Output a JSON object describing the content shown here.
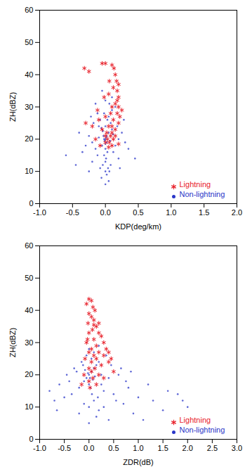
{
  "chart_data": [
    {
      "type": "scatter",
      "xlabel": "KDP(deg/km)",
      "ylabel": "ZH(dBZ)",
      "xlim": [
        -1.0,
        2.0
      ],
      "xticks": [
        {
          "value": -1.0,
          "label": "-1.0"
        },
        {
          "value": -0.5,
          "label": "-0.5"
        },
        {
          "value": 0.0,
          "label": "0.0"
        },
        {
          "value": 0.5,
          "label": "0.5"
        },
        {
          "value": 1.0,
          "label": "1.0"
        },
        {
          "value": 1.5,
          "label": "1.5"
        },
        {
          "value": 2.0,
          "label": "2.0"
        }
      ],
      "ylim": [
        0,
        60
      ],
      "yticks": [
        0,
        10,
        20,
        30,
        40,
        50,
        60
      ],
      "legend": "bottom-right",
      "series": [
        {
          "name": "Lightning",
          "color": "#e8202a",
          "marker": "asterisk",
          "x": [
            -0.32,
            -0.25,
            -0.05,
            0.0,
            0.1,
            0.13,
            0.15,
            0.17,
            0.2,
            0.12,
            0.18,
            0.2,
            0.05,
            -0.02,
            0.15,
            0.2,
            0.1,
            0.08,
            0.18,
            0.22,
            0.0,
            -0.1,
            0.12,
            0.2,
            0.05,
            0.15,
            -0.05,
            0.1,
            0.0,
            0.08,
            -0.15,
            0.03,
            0.12,
            0.0,
            0.06,
            -0.08,
            0.1,
            0.02,
            0.15,
            -0.2,
            0.18,
            0.06,
            -0.12,
            0.25,
            0.1,
            -0.3,
            0.2,
            0.05
          ],
          "y": [
            42,
            41,
            43.5,
            43.5,
            43,
            42,
            40,
            38,
            37,
            36,
            35,
            33,
            34,
            33,
            31,
            30,
            30,
            28,
            28,
            27,
            27,
            26,
            26,
            25,
            24,
            23,
            23,
            22,
            21,
            21,
            20,
            20,
            20,
            19,
            19,
            18,
            18,
            22,
            21,
            24,
            32,
            38,
            29,
            29,
            24,
            25,
            18.5,
            17.5
          ]
        },
        {
          "name": "Non-lightning",
          "color": "#2a36c8",
          "marker": "circle",
          "x": [
            0,
            0.02,
            -0.03,
            0.05,
            -0.05,
            0.0,
            0.03,
            -0.02,
            0.01,
            0.0,
            -0.04,
            0.04,
            0.0,
            0.02,
            -0.06,
            0.1,
            -0.1,
            0.08,
            -0.08,
            0.05,
            -0.12,
            0.1,
            0.15,
            -0.15,
            0.0,
            0.2,
            -0.2,
            0.15,
            -0.15,
            0.12,
            -0.12,
            0.2,
            -0.2,
            0.25,
            -0.25,
            0.3,
            -0.3,
            0.08,
            -0.08,
            0.06,
            -0.1,
            0.07,
            -0.04,
            0.12,
            -0.06,
            0.18,
            -0.18,
            0.0,
            0.03,
            -0.02,
            0.06,
            -0.35,
            0.35,
            -0.4,
            0.28,
            0.0,
            0.05,
            -0.22,
            0.22,
            -0.25,
            -0.6,
            0.45,
            -0.45,
            0.1,
            -0.05,
            0.0,
            0.01,
            -0.01,
            0.02,
            -0.02
          ],
          "y": [
            20,
            19,
            21,
            22,
            18,
            17,
            16,
            15,
            14,
            13,
            12,
            11,
            10,
            9,
            8,
            23,
            24,
            25,
            26,
            27,
            28,
            29,
            30,
            31,
            32,
            20,
            19,
            18,
            17,
            16,
            15,
            14,
            13,
            22,
            21,
            19,
            18,
            12,
            11,
            10,
            20.5,
            19.5,
            22.5,
            21.5,
            23.5,
            24,
            25,
            24,
            26,
            28,
            31,
            16,
            17,
            22,
            26,
            6,
            7,
            27,
            11,
            10,
            15,
            14,
            12,
            33,
            35,
            18.5,
            20.5,
            19.5,
            21,
            20
          ]
        }
      ]
    },
    {
      "type": "scatter",
      "xlabel": "ZDR(dB)",
      "ylabel": "ZH(dBZ)",
      "xlim": [
        -1.0,
        3.0
      ],
      "xticks": [
        {
          "value": -1.0,
          "label": "-1.0"
        },
        {
          "value": -0.5,
          "label": "-0.5"
        },
        {
          "value": 0.0,
          "label": "0.0"
        },
        {
          "value": 0.5,
          "label": "0.5"
        },
        {
          "value": 1.0,
          "label": "1.0"
        },
        {
          "value": 1.5,
          "label": "1.5"
        },
        {
          "value": 2.0,
          "label": "2.0"
        },
        {
          "value": 2.5,
          "label": "2.5"
        },
        {
          "value": 3.0,
          "label": "3.0"
        }
      ],
      "ylim": [
        0,
        60
      ],
      "yticks": [
        0,
        10,
        20,
        30,
        40,
        50,
        60
      ],
      "legend": "bottom-right",
      "series": [
        {
          "name": "Lightning",
          "color": "#e8202a",
          "marker": "asterisk",
          "x": [
            0.0,
            0.05,
            -0.05,
            0.08,
            0.12,
            0.0,
            0.05,
            0.1,
            -0.02,
            0.15,
            0.07,
            0.2,
            0.0,
            0.25,
            0.1,
            -0.05,
            0.3,
            0.15,
            0.05,
            0.35,
            0.2,
            0.0,
            0.1,
            0.3,
            -0.08,
            0.15,
            0.4,
            0.05,
            0.25,
            0.0,
            0.12,
            0.5,
            0.05,
            0.2,
            -0.1,
            0.08,
            0.3,
            0.0,
            -0.15,
            0.15,
            0.02,
            0.1,
            0.2,
            -0.03,
            0.4,
            0.45
          ],
          "y": [
            43.5,
            43,
            42,
            41,
            40,
            39,
            38,
            37,
            36,
            35,
            34,
            33,
            33,
            32,
            31,
            30,
            30,
            29,
            28,
            28,
            27,
            27,
            26,
            26,
            25,
            25,
            24,
            24,
            23,
            22,
            22,
            21,
            21,
            20,
            20,
            19,
            19,
            18,
            17,
            17,
            16,
            35.5,
            36,
            31,
            27,
            25
          ]
        },
        {
          "name": "Non-lightning",
          "color": "#2a36c8",
          "marker": "circle",
          "x": [
            0,
            0.05,
            -0.05,
            0.1,
            -0.1,
            0.15,
            0.0,
            0.2,
            -0.2,
            0.25,
            -0.25,
            0.3,
            -0.3,
            0.4,
            -0.4,
            0.5,
            -0.5,
            0.6,
            -0.6,
            0.7,
            -0.7,
            0.8,
            1.0,
            1.2,
            1.5,
            1.8,
            2.0,
            1.1,
            0.9,
            -0.8,
            0.0,
            0.1,
            -0.1,
            0.2,
            0.05,
            -0.05,
            0.1,
            0.0,
            0.2,
            -0.15,
            0.35,
            -0.35,
            0.45,
            0.55,
            0.65,
            -0.45,
            0.3,
            -0.2,
            0.15,
            0.4,
            0.0,
            0.75,
            0.85,
            1.3,
            1.6,
            -0.65,
            0.02,
            -0.02,
            0.08,
            -0.08,
            0.12,
            0.03,
            0.06,
            1.9,
            0.25,
            -0.12,
            0.18
          ],
          "y": [
            20,
            21,
            19,
            22,
            18,
            23,
            17,
            24,
            16,
            20,
            21,
            15,
            22,
            19,
            18,
            14,
            13,
            20,
            17,
            11,
            12,
            16,
            13,
            17,
            9,
            14,
            10,
            6,
            8,
            15,
            10,
            12,
            11,
            9,
            25,
            26,
            27,
            28,
            29,
            24,
            26,
            14,
            23,
            12,
            22,
            20,
            10,
            8,
            7,
            6,
            5,
            18,
            21,
            12,
            15,
            9,
            19,
            20.5,
            18.5,
            21.5,
            19.5,
            16,
            14,
            12,
            17,
            23,
            13
          ]
        }
      ]
    }
  ]
}
